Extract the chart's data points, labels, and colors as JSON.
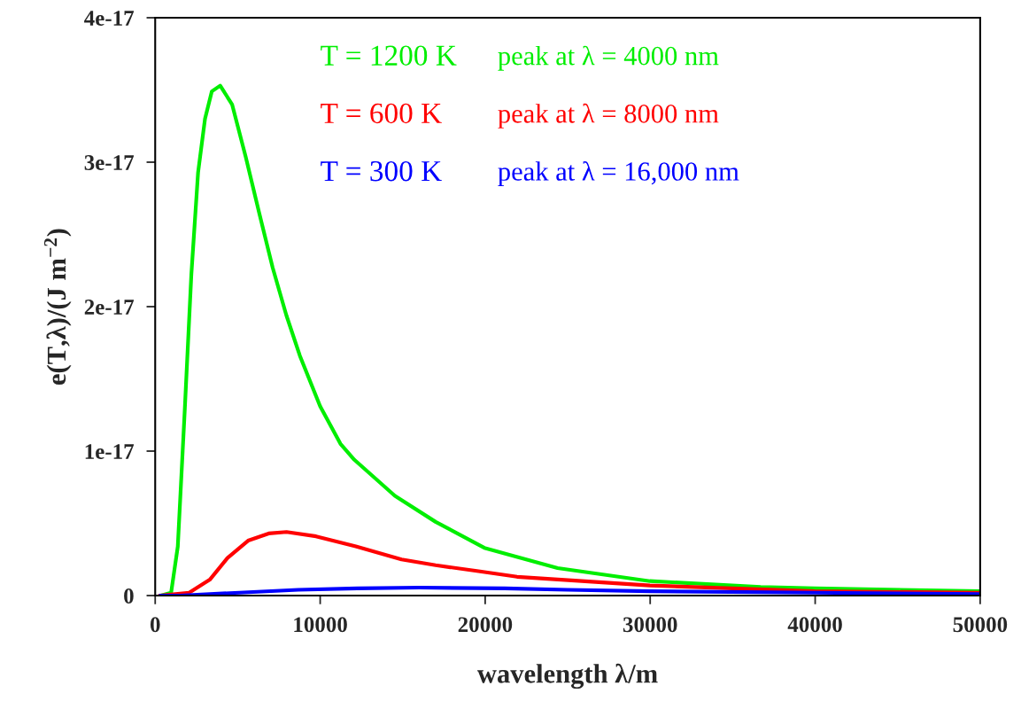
{
  "chart_data": {
    "type": "line",
    "xlabel": "wavelength λ/m",
    "ylabel": "e(T,λ)/(J m$^{−2}$)",
    "xlim": [
      0,
      50000
    ],
    "xticks": [
      0,
      10000,
      20000,
      30000,
      40000,
      50000
    ],
    "ylim": [
      0,
      4e-17
    ],
    "yticks": [
      0,
      {
        "value": 1e-17,
        "label": "1e-17"
      },
      {
        "value": 2e-17,
        "label": "2e-17"
      },
      {
        "value": 3e-17,
        "label": "3e-17"
      },
      {
        "value": 4e-17,
        "label": "4e-17"
      }
    ],
    "grid": false,
    "legend": false,
    "marker": "none",
    "line_style": "solid",
    "series": [
      {
        "name": "T = 1200 K",
        "color": "#00ee00",
        "x": [
          350,
          966,
          1370,
          1790,
          2190,
          2600,
          3020,
          3430,
          3940,
          4660,
          5480,
          6300,
          7120,
          7950,
          8770,
          10000,
          11230,
          12070,
          14530,
          17000,
          19950,
          24390,
          29980,
          36700,
          39980,
          50000
        ],
        "values": [
          0,
          2e-19,
          3.4e-18,
          1.28e-17,
          2.22e-17,
          2.93e-17,
          3.3e-17,
          3.49e-17,
          3.53e-17,
          3.4e-17,
          3.04e-17,
          2.65e-17,
          2.27e-17,
          1.94e-17,
          1.66e-17,
          1.31e-17,
          1.05e-17,
          9.4e-18,
          6.9e-18,
          5.1e-18,
          3.3e-18,
          1.9e-18,
          1e-18,
          6e-19,
          5e-19,
          3e-19
        ]
      },
      {
        "name": "T = 600 K",
        "color": "#ff0000",
        "x": [
          270,
          2060,
          3310,
          4380,
          5630,
          6880,
          7960,
          9750,
          12160,
          14930,
          17000,
          19500,
          21930,
          29980,
          39980,
          50000
        ],
        "values": [
          0,
          2e-19,
          1.1e-18,
          2.6e-18,
          3.8e-18,
          4.3e-18,
          4.4e-18,
          4.1e-18,
          3.4e-18,
          2.5e-18,
          2.1e-18,
          1.7e-18,
          1.3e-18,
          7e-19,
          3e-19,
          2e-19
        ]
      },
      {
        "name": "T = 300 K",
        "color": "#0000ff",
        "x": [
          300,
          1520,
          5100,
          8670,
          12250,
          16000,
          21190,
          25000,
          29980,
          39980,
          50000
        ],
        "values": [
          0,
          0,
          2e-19,
          4e-19,
          5e-19,
          5.5e-19,
          5e-19,
          4e-19,
          3e-19,
          2e-19,
          1e-19
        ]
      }
    ],
    "annotations": [
      "peak at λ = 4000 nm",
      "peak at λ = 8000 nm",
      "peak at λ = 16,000 nm"
    ]
  }
}
